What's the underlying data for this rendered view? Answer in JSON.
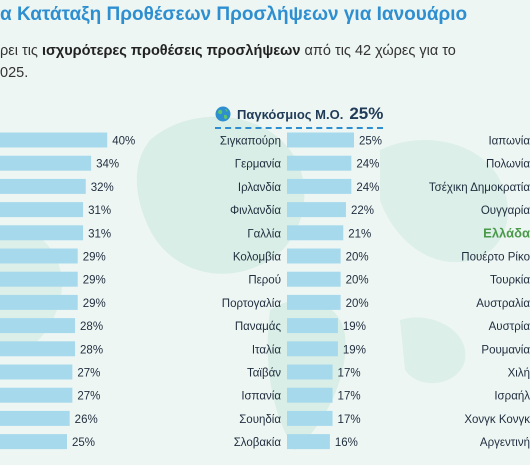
{
  "header": {
    "title": "α Κατάταξη Προθέσεων Προσλήψεων για Ιανουάριο",
    "subtitle_pre": "ρει τις ",
    "subtitle_bold": "ισχυρότερες προθέσεις προσλήψεων",
    "subtitle_post": " από τις 42 χώρες για το",
    "subtitle_line2": "025."
  },
  "global_average": {
    "label": "Παγκόσμιος Μ.Ο.",
    "value": "25%"
  },
  "colors": {
    "bar": "#a7d9ec",
    "accent": "#2e8fd0",
    "highlight": "#4a9a4a",
    "text": "#1f2d3d"
  },
  "chart_data": [
    {
      "type": "bar",
      "title": "",
      "categories": [
        "",
        "",
        "",
        "",
        "",
        "",
        "",
        "",
        "",
        "",
        "",
        "",
        "",
        ""
      ],
      "values": [
        40,
        34,
        32,
        31,
        31,
        29,
        29,
        29,
        28,
        28,
        27,
        27,
        26,
        25
      ]
    },
    {
      "type": "bar",
      "title": "",
      "categories": [
        "Σιγκαπούρη",
        "Γερμανία",
        "Ιρλανδία",
        "Φινλανδία",
        "Γαλλία",
        "Κολομβία",
        "Περού",
        "Πορτογαλία",
        "Παναμάς",
        "Ιταλία",
        "Ταϊβάν",
        "Ισπανία",
        "Σουηδία",
        "Σλοβακία"
      ],
      "values": [
        25,
        24,
        24,
        22,
        21,
        20,
        20,
        20,
        19,
        19,
        17,
        17,
        17,
        16
      ]
    },
    {
      "type": "bar",
      "title": "",
      "categories": [
        "Ιαπωνία",
        "Πολωνία",
        "Τσέχικη Δημοκρατία",
        "Ουγγαρία",
        "Ελλάδα",
        "Πουέρτο Ρίκο",
        "Τουρκία",
        "Αυστραλία",
        "Αυστρία",
        "Ρουμανία",
        "Χιλή",
        "Ισραήλ",
        "Χονγκ Κονγκ",
        "Αργεντινή"
      ],
      "highlight_category": "Ελλάδα"
    }
  ]
}
